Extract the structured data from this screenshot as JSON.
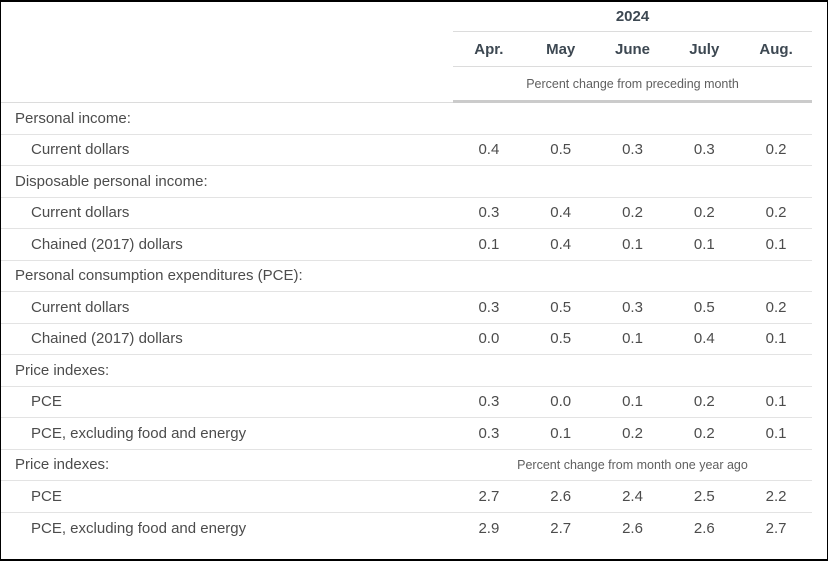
{
  "table": {
    "year": "2024",
    "months": [
      "Apr.",
      "May",
      "June",
      "July",
      "Aug."
    ],
    "unit_note_top": "Percent change from preceding month",
    "rows": [
      {
        "label": "Personal income:",
        "type": "section"
      },
      {
        "label": "Current dollars",
        "type": "data",
        "values": [
          "0.4",
          "0.5",
          "0.3",
          "0.3",
          "0.2"
        ]
      },
      {
        "label": "Disposable personal income:",
        "type": "section"
      },
      {
        "label": "Current dollars",
        "type": "data",
        "values": [
          "0.3",
          "0.4",
          "0.2",
          "0.2",
          "0.2"
        ]
      },
      {
        "label": "Chained (2017) dollars",
        "type": "data",
        "values": [
          "0.1",
          "0.4",
          "0.1",
          "0.1",
          "0.1"
        ]
      },
      {
        "label": "Personal consumption expenditures (PCE):",
        "type": "section"
      },
      {
        "label": "Current dollars",
        "type": "data",
        "values": [
          "0.3",
          "0.5",
          "0.3",
          "0.5",
          "0.2"
        ]
      },
      {
        "label": "Chained (2017) dollars",
        "type": "data",
        "values": [
          "0.0",
          "0.5",
          "0.1",
          "0.4",
          "0.1"
        ]
      },
      {
        "label": "Price indexes:",
        "type": "section"
      },
      {
        "label": "PCE",
        "type": "data",
        "values": [
          "0.3",
          "0.0",
          "0.1",
          "0.2",
          "0.1"
        ]
      },
      {
        "label": "PCE, excluding food and energy",
        "type": "data",
        "values": [
          "0.3",
          "0.1",
          "0.2",
          "0.2",
          "0.1"
        ]
      },
      {
        "label": "Price indexes:",
        "type": "section",
        "note": "Percent change from month one year ago"
      },
      {
        "label": "PCE",
        "type": "data",
        "values": [
          "2.7",
          "2.6",
          "2.4",
          "2.5",
          "2.2"
        ]
      },
      {
        "label": "PCE, excluding food and energy",
        "type": "data",
        "values": [
          "2.9",
          "2.7",
          "2.6",
          "2.6",
          "2.7"
        ]
      }
    ]
  },
  "chart_data": {
    "type": "table",
    "year": "2024",
    "columns": [
      "Apr.",
      "May",
      "June",
      "July",
      "Aug."
    ],
    "sections": [
      {
        "name": "Personal income:",
        "unit": "Percent change from preceding month",
        "rows": [
          {
            "label": "Current dollars",
            "values": [
              0.4,
              0.5,
              0.3,
              0.3,
              0.2
            ]
          }
        ]
      },
      {
        "name": "Disposable personal income:",
        "unit": "Percent change from preceding month",
        "rows": [
          {
            "label": "Current dollars",
            "values": [
              0.3,
              0.4,
              0.2,
              0.2,
              0.2
            ]
          },
          {
            "label": "Chained (2017) dollars",
            "values": [
              0.1,
              0.4,
              0.1,
              0.1,
              0.1
            ]
          }
        ]
      },
      {
        "name": "Personal consumption expenditures (PCE):",
        "unit": "Percent change from preceding month",
        "rows": [
          {
            "label": "Current dollars",
            "values": [
              0.3,
              0.5,
              0.3,
              0.5,
              0.2
            ]
          },
          {
            "label": "Chained (2017) dollars",
            "values": [
              0.0,
              0.5,
              0.1,
              0.4,
              0.1
            ]
          }
        ]
      },
      {
        "name": "Price indexes:",
        "unit": "Percent change from preceding month",
        "rows": [
          {
            "label": "PCE",
            "values": [
              0.3,
              0.0,
              0.1,
              0.2,
              0.1
            ]
          },
          {
            "label": "PCE, excluding food and energy",
            "values": [
              0.3,
              0.1,
              0.2,
              0.2,
              0.1
            ]
          }
        ]
      },
      {
        "name": "Price indexes:",
        "unit": "Percent change from month one year ago",
        "rows": [
          {
            "label": "PCE",
            "values": [
              2.7,
              2.6,
              2.4,
              2.5,
              2.2
            ]
          },
          {
            "label": "PCE, excluding food and energy",
            "values": [
              2.9,
              2.7,
              2.6,
              2.6,
              2.7
            ]
          }
        ]
      }
    ],
    "layout": {
      "grid": "horizontal-rules-only",
      "values_alignment": "center"
    },
    "colors": {
      "header_text": "#3d4852",
      "body_text": "#4c4c4c",
      "rule_thin": "#e3e3e3",
      "rule_thick": "#cbcbcb"
    }
  }
}
